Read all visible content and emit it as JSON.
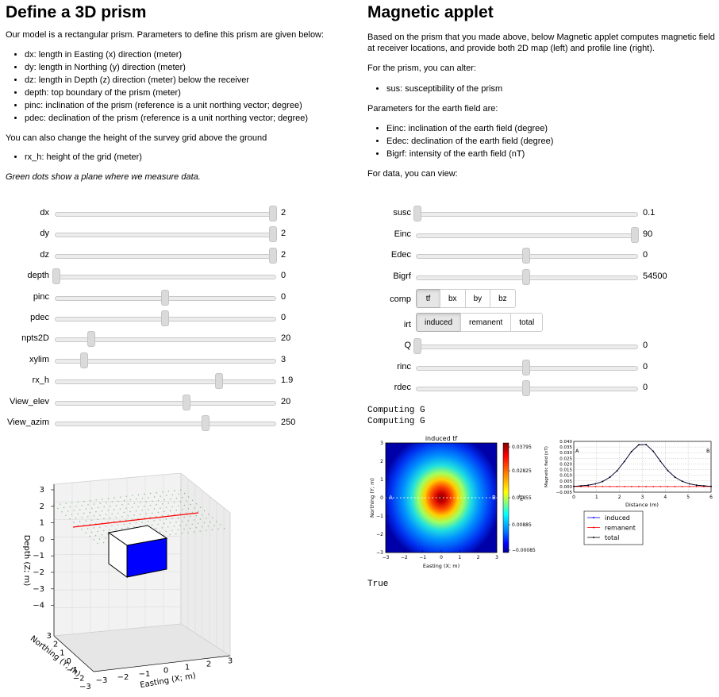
{
  "left": {
    "title": "Define a 3D prism",
    "intro": "Our model is a rectangular prism. Parameters to define this prism are given below:",
    "params": [
      "dx: length in Easting (x) direction (meter)",
      "dy: length in Northing (y) direction (meter)",
      "dz: length in Depth (z) direction (meter) below the receiver",
      "depth: top boundary of the prism (meter)",
      "pinc: inclination of the prism (reference is a unit northing vector; degree)",
      "pdec: declination of the prism (reference is a unit northing vector; degree)"
    ],
    "grid_text": "You can also change the height of the survey grid above the ground",
    "grid_params": [
      "rx_h: height of the grid (meter)"
    ],
    "note": "Green dots show a plane where we measure data.",
    "sliders": [
      {
        "label": "dx",
        "value": "2",
        "pos": 1.0
      },
      {
        "label": "dy",
        "value": "2",
        "pos": 1.0
      },
      {
        "label": "dz",
        "value": "2",
        "pos": 1.0
      },
      {
        "label": "depth",
        "value": "0",
        "pos": 0.0
      },
      {
        "label": "pinc",
        "value": "0",
        "pos": 0.5
      },
      {
        "label": "pdec",
        "value": "0",
        "pos": 0.5
      },
      {
        "label": "npts2D",
        "value": "20",
        "pos": 0.16
      },
      {
        "label": "xylim",
        "value": "3",
        "pos": 0.13
      },
      {
        "label": "rx_h",
        "value": "1.9",
        "pos": 0.75
      },
      {
        "label": "View_elev",
        "value": "20",
        "pos": 0.6
      },
      {
        "label": "View_azim",
        "value": "250",
        "pos": 0.69
      }
    ],
    "plot3d": {
      "z_ticks": [
        "3",
        "2",
        "1",
        "0",
        "−1",
        "−2",
        "−3",
        "−4"
      ],
      "zlabel": "Depth (Z; m)",
      "y_ticks": [
        "3",
        "2",
        "1",
        "0",
        "−1",
        "−2",
        "−3"
      ],
      "ylabel": "Northing (Y; m)",
      "x_ticks": [
        "−3",
        "−2",
        "−1",
        "0",
        "1",
        "2",
        "3"
      ],
      "xlabel": "Easting (X; m)",
      "prism_color": "#0000ff",
      "profile_color": "#ff0000"
    }
  },
  "right": {
    "title": "Magnetic applet",
    "intro": "Based on the prism that you made above, below Magnetic applet computes magnetic field at receiver locations, and provide both 2D map (left) and profile line (right).",
    "alter_text": "For the prism, you can alter:",
    "alter_params": [
      "sus: susceptibility of the prism"
    ],
    "earth_text": "Parameters for the earth field are:",
    "earth_params": [
      "Einc: inclination of the earth field (degree)",
      "Edec: declination of the earth field (degree)",
      "Bigrf: intensity of the earth field (nT)"
    ],
    "data_text": "For data, you can view:",
    "sliders_top": [
      {
        "label": "susc",
        "value": "0.1",
        "pos": 0.0
      },
      {
        "label": "Einc",
        "value": "90",
        "pos": 1.0
      },
      {
        "label": "Edec",
        "value": "0",
        "pos": 0.5
      },
      {
        "label": "Bigrf",
        "value": "54500",
        "pos": 0.5
      }
    ],
    "comp": {
      "label": "comp",
      "options": [
        "tf",
        "bx",
        "by",
        "bz"
      ],
      "selected": "tf"
    },
    "irt": {
      "label": "irt",
      "options": [
        "induced",
        "remanent",
        "total"
      ],
      "selected": "induced"
    },
    "sliders_bottom": [
      {
        "label": "Q",
        "value": "0",
        "pos": 0.0
      },
      {
        "label": "rinc",
        "value": "0",
        "pos": 0.5
      },
      {
        "label": "rdec",
        "value": "0",
        "pos": 0.5
      }
    ],
    "output_lines": [
      "Computing G",
      "Computing G"
    ],
    "output_end": "True"
  },
  "chart_data": [
    {
      "type": "heatmap",
      "title": "induced tf",
      "xlabel": "Easting (X; m)",
      "ylabel": "Northing (Y; m)",
      "xlim": [
        -3,
        3
      ],
      "ylim": [
        -3,
        3
      ],
      "x_ticks": [
        "−3",
        "−2",
        "−1",
        "0",
        "1",
        "2",
        "3"
      ],
      "y_ticks": [
        "3",
        "2",
        "1",
        "0",
        "−1",
        "−2",
        "−3"
      ],
      "colorbar_label": "nT",
      "colorbar_ticks": [
        "0.03795",
        "0.02825",
        "0.01855",
        "0.00885",
        "−0.00085"
      ],
      "profile_labels": [
        "A",
        "B"
      ],
      "max_value": 0.03795,
      "min_value": -0.00085
    },
    {
      "type": "line",
      "xlabel": "Distance (m)",
      "ylabel": "Magnetic field (nT)",
      "xlim": [
        0,
        6
      ],
      "ylim": [
        -0.005,
        0.04
      ],
      "x_ticks": [
        "0",
        "1",
        "2",
        "3",
        "4",
        "5",
        "6"
      ],
      "y_ticks": [
        "0.040",
        "0.035",
        "0.030",
        "0.025",
        "0.020",
        "0.015",
        "0.010",
        "0.005",
        "0.000",
        "−0.005"
      ],
      "profile_labels": [
        "A",
        "B"
      ],
      "x": [
        0,
        0.316,
        0.632,
        0.947,
        1.263,
        1.579,
        1.895,
        2.211,
        2.526,
        2.842,
        3.158,
        3.474,
        3.789,
        4.105,
        4.421,
        4.737,
        5.053,
        5.368,
        5.684,
        6.0
      ],
      "series": [
        {
          "name": "induced",
          "color": "#0000ff",
          "values": [
            0.0002,
            0.0006,
            0.0012,
            0.0024,
            0.0045,
            0.0082,
            0.014,
            0.0222,
            0.031,
            0.037,
            0.0372,
            0.0312,
            0.0224,
            0.0142,
            0.0083,
            0.0046,
            0.0024,
            0.0012,
            0.0006,
            0.0002
          ]
        },
        {
          "name": "remanent",
          "color": "#ff0000",
          "values": [
            0,
            0,
            0,
            0,
            0,
            0,
            0,
            0,
            0,
            0,
            0,
            0,
            0,
            0,
            0,
            0,
            0,
            0,
            0,
            0
          ]
        },
        {
          "name": "total",
          "color": "#000000",
          "values": [
            0.0002,
            0.0006,
            0.0012,
            0.0024,
            0.0045,
            0.0082,
            0.014,
            0.0222,
            0.031,
            0.037,
            0.0372,
            0.0312,
            0.0224,
            0.0142,
            0.0083,
            0.0046,
            0.0024,
            0.0012,
            0.0006,
            0.0002
          ]
        }
      ],
      "legend": "bottom-outside"
    }
  ]
}
